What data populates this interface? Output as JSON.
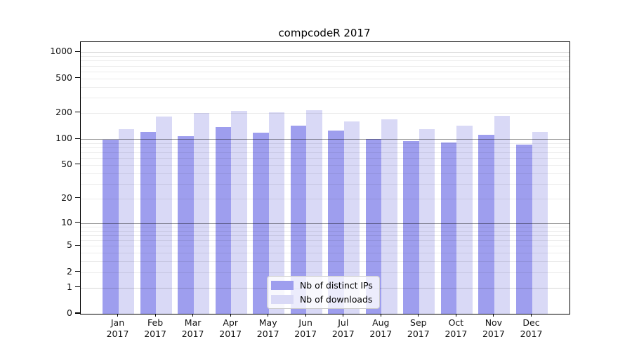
{
  "figure": {
    "title": "compcodeR 2017",
    "background": "#ffffff"
  },
  "legend": {
    "items": [
      {
        "label": "Nb of distinct IPs",
        "color": "#9e9eee"
      },
      {
        "label": "Nb of downloads",
        "color": "#d9d9f6"
      }
    ]
  },
  "chart_data": {
    "type": "bar",
    "title": "compcodeR 2017",
    "categories": [
      "Jan 2017",
      "Feb 2017",
      "Mar 2017",
      "Apr 2017",
      "May 2017",
      "Jun 2017",
      "Jul 2017",
      "Aug 2017",
      "Sep 2017",
      "Oct 2017",
      "Nov 2017",
      "Dec 2017"
    ],
    "month_labels": [
      "Jan",
      "Feb",
      "Mar",
      "Apr",
      "May",
      "Jun",
      "Jul",
      "Aug",
      "Sep",
      "Oct",
      "Nov",
      "Dec"
    ],
    "year_label": "2017",
    "series": [
      {
        "name": "Nb of distinct IPs",
        "color": "#9e9eee",
        "values": [
          99,
          120,
          107,
          139,
          119,
          143,
          125,
          100,
          95,
          92,
          112,
          86
        ]
      },
      {
        "name": "Nb of downloads",
        "color": "#d9d9f6",
        "values": [
          131,
          181,
          200,
          212,
          205,
          216,
          161,
          170,
          129,
          144,
          184,
          121
        ]
      }
    ],
    "xlabel": "",
    "ylabel": "",
    "y_axis": {
      "scale": "log10(value+1)",
      "tick_values": [
        0,
        1,
        2,
        5,
        10,
        20,
        50,
        100,
        200,
        500,
        1000
      ],
      "tick_labels": [
        "0",
        "1",
        "2",
        "5",
        "10",
        "20",
        "50",
        "100",
        "200",
        "500",
        "1000"
      ],
      "limit_top": 1305
    },
    "gridlines": {
      "minor_values": [
        2,
        3,
        4,
        5,
        6,
        7,
        8,
        9,
        20,
        30,
        40,
        50,
        60,
        70,
        80,
        90,
        200,
        300,
        400,
        500,
        600,
        700,
        800,
        900
      ],
      "major_values": [
        10,
        100
      ],
      "edge_major_values": [
        1,
        1000
      ]
    },
    "grid": true,
    "legend_position": "bottom-center"
  }
}
